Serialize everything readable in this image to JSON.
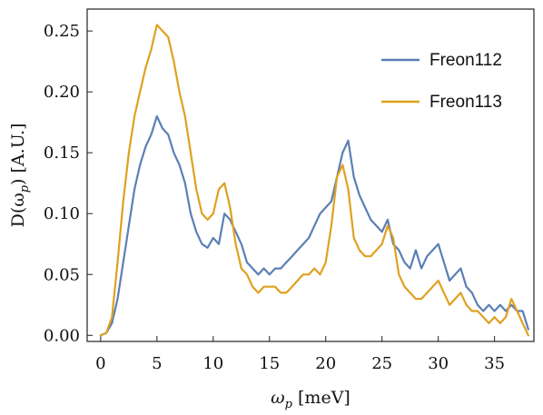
{
  "chart_data": {
    "type": "line",
    "xlabel": "ω",
    "xlabel_subscript": "p",
    "xlabel_unit": " [meV]",
    "ylabel_prefix": "D(ω",
    "ylabel_subscript": "p",
    "ylabel_suffix": ") [A.U.]",
    "xlim": [
      -1.2,
      38.5
    ],
    "ylim": [
      -0.005,
      0.268
    ],
    "x_ticks": [
      0,
      5,
      10,
      15,
      20,
      25,
      30,
      35
    ],
    "x_tick_labels": [
      "0",
      "5",
      "10",
      "15",
      "20",
      "25",
      "30",
      "35"
    ],
    "y_ticks": [
      0.0,
      0.05,
      0.1,
      0.15,
      0.2,
      0.25
    ],
    "y_tick_labels": [
      "0.00",
      "0.05",
      "0.10",
      "0.15",
      "0.20",
      "0.25"
    ],
    "grid": false,
    "legend_position": "top-right",
    "series": [
      {
        "name": "Freon112",
        "color": "#5b7fb5",
        "x": [
          0.0,
          0.5,
          1.0,
          1.5,
          2.0,
          2.5,
          3.0,
          3.5,
          4.0,
          4.5,
          5.0,
          5.5,
          6.0,
          6.5,
          7.0,
          7.5,
          8.0,
          8.5,
          9.0,
          9.5,
          10.0,
          10.5,
          11.0,
          11.5,
          12.0,
          12.5,
          13.0,
          13.5,
          14.0,
          14.5,
          15.0,
          15.5,
          16.0,
          16.5,
          17.0,
          17.5,
          18.0,
          18.5,
          19.0,
          19.5,
          20.0,
          20.5,
          21.0,
          21.5,
          22.0,
          22.5,
          23.0,
          23.5,
          24.0,
          24.5,
          25.0,
          25.5,
          26.0,
          26.5,
          27.0,
          27.5,
          28.0,
          28.5,
          29.0,
          29.5,
          30.0,
          30.5,
          31.0,
          31.5,
          32.0,
          32.5,
          33.0,
          33.5,
          34.0,
          34.5,
          35.0,
          35.5,
          36.0,
          36.5,
          37.0,
          37.5,
          38.0
        ],
        "y": [
          0.0,
          0.002,
          0.01,
          0.03,
          0.06,
          0.09,
          0.12,
          0.14,
          0.155,
          0.165,
          0.18,
          0.17,
          0.165,
          0.15,
          0.14,
          0.125,
          0.1,
          0.085,
          0.075,
          0.072,
          0.08,
          0.075,
          0.1,
          0.095,
          0.085,
          0.075,
          0.06,
          0.055,
          0.05,
          0.055,
          0.05,
          0.055,
          0.055,
          0.06,
          0.065,
          0.07,
          0.075,
          0.08,
          0.09,
          0.1,
          0.105,
          0.11,
          0.13,
          0.15,
          0.16,
          0.13,
          0.115,
          0.105,
          0.095,
          0.09,
          0.085,
          0.095,
          0.075,
          0.07,
          0.06,
          0.055,
          0.07,
          0.055,
          0.065,
          0.07,
          0.075,
          0.06,
          0.045,
          0.05,
          0.055,
          0.04,
          0.035,
          0.025,
          0.02,
          0.025,
          0.02,
          0.025,
          0.02,
          0.025,
          0.02,
          0.02,
          0.005
        ]
      },
      {
        "name": "Freon113",
        "color": "#e0a11f",
        "x": [
          0.0,
          0.5,
          1.0,
          1.5,
          2.0,
          2.5,
          3.0,
          3.5,
          4.0,
          4.5,
          5.0,
          5.5,
          6.0,
          6.5,
          7.0,
          7.5,
          8.0,
          8.5,
          9.0,
          9.5,
          10.0,
          10.5,
          11.0,
          11.5,
          12.0,
          12.5,
          13.0,
          13.5,
          14.0,
          14.5,
          15.0,
          15.5,
          16.0,
          16.5,
          17.0,
          17.5,
          18.0,
          18.5,
          19.0,
          19.5,
          20.0,
          20.5,
          21.0,
          21.5,
          22.0,
          22.5,
          23.0,
          23.5,
          24.0,
          24.5,
          25.0,
          25.5,
          26.0,
          26.5,
          27.0,
          27.5,
          28.0,
          28.5,
          29.0,
          29.5,
          30.0,
          30.5,
          31.0,
          31.5,
          32.0,
          32.5,
          33.0,
          33.5,
          34.0,
          34.5,
          35.0,
          35.5,
          36.0,
          36.5,
          37.0,
          37.5,
          38.0
        ],
        "y": [
          0.0,
          0.002,
          0.015,
          0.06,
          0.11,
          0.15,
          0.18,
          0.2,
          0.22,
          0.235,
          0.255,
          0.25,
          0.245,
          0.225,
          0.2,
          0.18,
          0.15,
          0.12,
          0.1,
          0.095,
          0.1,
          0.12,
          0.125,
          0.105,
          0.075,
          0.055,
          0.05,
          0.04,
          0.035,
          0.04,
          0.04,
          0.04,
          0.035,
          0.035,
          0.04,
          0.045,
          0.05,
          0.05,
          0.055,
          0.05,
          0.06,
          0.09,
          0.13,
          0.14,
          0.12,
          0.08,
          0.07,
          0.065,
          0.065,
          0.07,
          0.075,
          0.09,
          0.08,
          0.05,
          0.04,
          0.035,
          0.03,
          0.03,
          0.035,
          0.04,
          0.045,
          0.035,
          0.025,
          0.03,
          0.035,
          0.025,
          0.02,
          0.02,
          0.015,
          0.01,
          0.015,
          0.01,
          0.015,
          0.03,
          0.02,
          0.01,
          0.0
        ]
      }
    ]
  }
}
